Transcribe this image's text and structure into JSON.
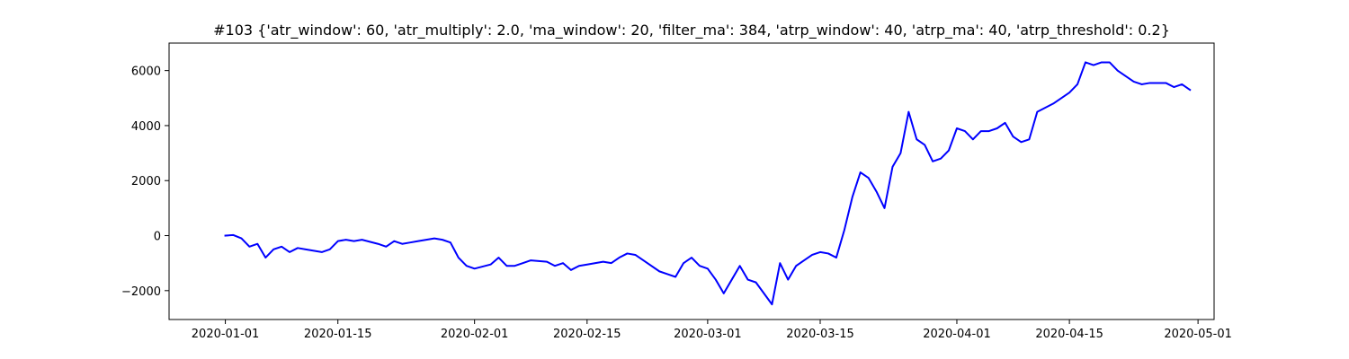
{
  "chart_data": {
    "type": "line",
    "title": "#103 {'atr_window': 60, 'atr_multiply': 2.0, 'ma_window': 20, 'filter_ma': 384, 'atrp_window': 40, 'atrp_ma': 40, 'atrp_threshold': 0.2}",
    "xlabel": "",
    "ylabel": "",
    "grid": false,
    "legend": "none",
    "xlim": [
      "2019-12-25",
      "2020-05-03"
    ],
    "ylim": [
      -3050,
      7000
    ],
    "x_ticks": [
      "2020-01-01",
      "2020-01-15",
      "2020-02-01",
      "2020-02-15",
      "2020-03-01",
      "2020-03-15",
      "2020-04-01",
      "2020-04-15",
      "2020-05-01"
    ],
    "y_ticks": [
      -2000,
      0,
      2000,
      4000,
      6000
    ],
    "y_tick_labels": [
      "−2000",
      "0",
      "2000",
      "4000",
      "6000"
    ],
    "series": [
      {
        "color": "#0000ff",
        "x": [
          "2020-01-01",
          "2020-01-02",
          "2020-01-03",
          "2020-01-04",
          "2020-01-05",
          "2020-01-06",
          "2020-01-07",
          "2020-01-08",
          "2020-01-09",
          "2020-01-10",
          "2020-01-11",
          "2020-01-13",
          "2020-01-14",
          "2020-01-15",
          "2020-01-16",
          "2020-01-17",
          "2020-01-18",
          "2020-01-20",
          "2020-01-21",
          "2020-01-22",
          "2020-01-23",
          "2020-01-24",
          "2020-01-25",
          "2020-01-27",
          "2020-01-28",
          "2020-01-29",
          "2020-01-30",
          "2020-01-31",
          "2020-02-01",
          "2020-02-03",
          "2020-02-04",
          "2020-02-05",
          "2020-02-06",
          "2020-02-07",
          "2020-02-08",
          "2020-02-10",
          "2020-02-11",
          "2020-02-12",
          "2020-02-13",
          "2020-02-14",
          "2020-02-15",
          "2020-02-17",
          "2020-02-18",
          "2020-02-19",
          "2020-02-20",
          "2020-02-21",
          "2020-02-22",
          "2020-02-24",
          "2020-02-25",
          "2020-02-26",
          "2020-02-27",
          "2020-02-28",
          "2020-02-29",
          "2020-03-01",
          "2020-03-02",
          "2020-03-03",
          "2020-03-04",
          "2020-03-05",
          "2020-03-06",
          "2020-03-07",
          "2020-03-08",
          "2020-03-09",
          "2020-03-10",
          "2020-03-11",
          "2020-03-12",
          "2020-03-13",
          "2020-03-14",
          "2020-03-15",
          "2020-03-16",
          "2020-03-17",
          "2020-03-18",
          "2020-03-19",
          "2020-03-20",
          "2020-03-21",
          "2020-03-22",
          "2020-03-23",
          "2020-03-24",
          "2020-03-25",
          "2020-03-26",
          "2020-03-27",
          "2020-03-28",
          "2020-03-29",
          "2020-03-30",
          "2020-03-31",
          "2020-04-01",
          "2020-04-02",
          "2020-04-03",
          "2020-04-04",
          "2020-04-05",
          "2020-04-06",
          "2020-04-07",
          "2020-04-08",
          "2020-04-09",
          "2020-04-10",
          "2020-04-11",
          "2020-04-13",
          "2020-04-14",
          "2020-04-15",
          "2020-04-16",
          "2020-04-17",
          "2020-04-18",
          "2020-04-19",
          "2020-04-20",
          "2020-04-21",
          "2020-04-22",
          "2020-04-23",
          "2020-04-24",
          "2020-04-25",
          "2020-04-27",
          "2020-04-28",
          "2020-04-29",
          "2020-04-30"
        ],
        "values": [
          0,
          20,
          -100,
          -400,
          -300,
          -800,
          -500,
          -400,
          -600,
          -450,
          -500,
          -600,
          -500,
          -200,
          -150,
          -200,
          -150,
          -300,
          -400,
          -200,
          -300,
          -250,
          -200,
          -100,
          -150,
          -250,
          -800,
          -1100,
          -1200,
          -1050,
          -800,
          -1100,
          -1100,
          -1000,
          -900,
          -950,
          -1100,
          -1000,
          -1250,
          -1100,
          -1050,
          -950,
          -1000,
          -800,
          -650,
          -700,
          -900,
          -1300,
          -1400,
          -1500,
          -1000,
          -800,
          -1100,
          -1200,
          -1600,
          -2100,
          -1600,
          -1100,
          -1600,
          -1700,
          -2100,
          -2500,
          -1000,
          -1600,
          -1100,
          -900,
          -700,
          -600,
          -650,
          -800,
          200,
          1400,
          2300,
          2100,
          1600,
          1000,
          2500,
          3000,
          4500,
          3500,
          3300,
          2700,
          2800,
          3100,
          3900,
          3800,
          3500,
          3800,
          3800,
          3900,
          4100,
          3600,
          3400,
          3500,
          4500,
          4800,
          5000,
          5200,
          5500,
          6300,
          6200,
          6300,
          6300,
          6000,
          5800,
          5600,
          5500,
          5550,
          5550,
          5400,
          5500,
          5300
        ]
      }
    ]
  }
}
